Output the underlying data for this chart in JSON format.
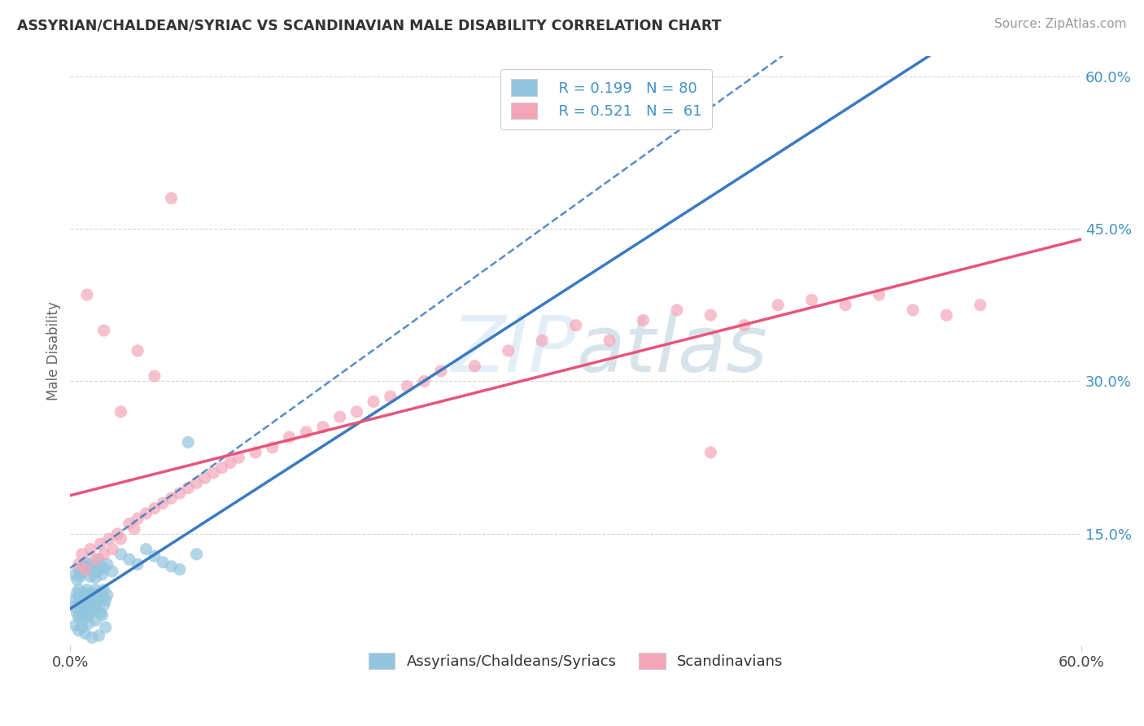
{
  "title": "ASSYRIAN/CHALDEAN/SYRIAC VS SCANDINAVIAN MALE DISABILITY CORRELATION CHART",
  "source": "Source: ZipAtlas.com",
  "ylabel": "Male Disability",
  "xlim": [
    0.0,
    0.6
  ],
  "ylim": [
    0.04,
    0.62
  ],
  "ytick_labels": [
    "15.0%",
    "30.0%",
    "45.0%",
    "60.0%"
  ],
  "ytick_values": [
    0.15,
    0.3,
    0.45,
    0.6
  ],
  "legend_r1": "R = 0.199",
  "legend_n1": "N = 80",
  "legend_r2": "R = 0.521",
  "legend_n2": "N =  61",
  "color_blue": "#92c5de",
  "color_pink": "#f4a6b8",
  "color_blue_line": "#3a7abf",
  "color_pink_line": "#e8547a",
  "background": "#ffffff",
  "grid_color": "#cccccc",
  "assyrians_x": [
    0.002,
    0.003,
    0.004,
    0.004,
    0.005,
    0.005,
    0.005,
    0.006,
    0.006,
    0.007,
    0.007,
    0.007,
    0.008,
    0.008,
    0.008,
    0.009,
    0.009,
    0.01,
    0.01,
    0.01,
    0.011,
    0.011,
    0.012,
    0.012,
    0.013,
    0.013,
    0.014,
    0.014,
    0.015,
    0.015,
    0.016,
    0.016,
    0.017,
    0.018,
    0.018,
    0.019,
    0.02,
    0.02,
    0.021,
    0.022,
    0.003,
    0.004,
    0.005,
    0.006,
    0.007,
    0.008,
    0.009,
    0.01,
    0.011,
    0.012,
    0.013,
    0.014,
    0.015,
    0.016,
    0.017,
    0.018,
    0.019,
    0.02,
    0.022,
    0.025,
    0.03,
    0.035,
    0.04,
    0.045,
    0.05,
    0.055,
    0.06,
    0.065,
    0.07,
    0.075,
    0.003,
    0.005,
    0.007,
    0.009,
    0.011,
    0.013,
    0.015,
    0.017,
    0.019,
    0.021
  ],
  "assyrians_y": [
    0.085,
    0.078,
    0.092,
    0.072,
    0.088,
    0.095,
    0.068,
    0.082,
    0.075,
    0.09,
    0.078,
    0.065,
    0.085,
    0.092,
    0.07,
    0.088,
    0.075,
    0.082,
    0.095,
    0.068,
    0.09,
    0.078,
    0.085,
    0.072,
    0.092,
    0.08,
    0.088,
    0.075,
    0.095,
    0.082,
    0.09,
    0.078,
    0.085,
    0.092,
    0.072,
    0.088,
    0.095,
    0.08,
    0.085,
    0.09,
    0.11,
    0.105,
    0.115,
    0.108,
    0.112,
    0.118,
    0.122,
    0.116,
    0.12,
    0.108,
    0.114,
    0.119,
    0.107,
    0.113,
    0.125,
    0.118,
    0.11,
    0.116,
    0.12,
    0.113,
    0.13,
    0.125,
    0.12,
    0.135,
    0.128,
    0.122,
    0.118,
    0.115,
    0.24,
    0.13,
    0.06,
    0.055,
    0.058,
    0.052,
    0.062,
    0.048,
    0.065,
    0.05,
    0.07,
    0.058
  ],
  "scandinavians_x": [
    0.005,
    0.007,
    0.009,
    0.012,
    0.015,
    0.018,
    0.02,
    0.023,
    0.025,
    0.028,
    0.03,
    0.035,
    0.038,
    0.04,
    0.045,
    0.05,
    0.055,
    0.06,
    0.065,
    0.07,
    0.075,
    0.08,
    0.085,
    0.09,
    0.095,
    0.1,
    0.11,
    0.12,
    0.13,
    0.14,
    0.15,
    0.16,
    0.17,
    0.18,
    0.19,
    0.2,
    0.21,
    0.22,
    0.24,
    0.26,
    0.28,
    0.3,
    0.32,
    0.34,
    0.36,
    0.38,
    0.4,
    0.42,
    0.44,
    0.46,
    0.48,
    0.5,
    0.52,
    0.54,
    0.01,
    0.02,
    0.03,
    0.04,
    0.38,
    0.05,
    0.06
  ],
  "scandinavians_y": [
    0.12,
    0.13,
    0.115,
    0.135,
    0.125,
    0.14,
    0.13,
    0.145,
    0.135,
    0.15,
    0.145,
    0.16,
    0.155,
    0.165,
    0.17,
    0.175,
    0.18,
    0.185,
    0.19,
    0.195,
    0.2,
    0.205,
    0.21,
    0.215,
    0.22,
    0.225,
    0.23,
    0.235,
    0.245,
    0.25,
    0.255,
    0.265,
    0.27,
    0.28,
    0.285,
    0.295,
    0.3,
    0.31,
    0.315,
    0.33,
    0.34,
    0.355,
    0.34,
    0.36,
    0.37,
    0.365,
    0.355,
    0.375,
    0.38,
    0.375,
    0.385,
    0.37,
    0.365,
    0.375,
    0.385,
    0.35,
    0.27,
    0.33,
    0.23,
    0.305,
    0.48
  ],
  "label_assyrians": "Assyrians/Chaldeans/Syriacs",
  "label_scandinavians": "Scandinavians"
}
